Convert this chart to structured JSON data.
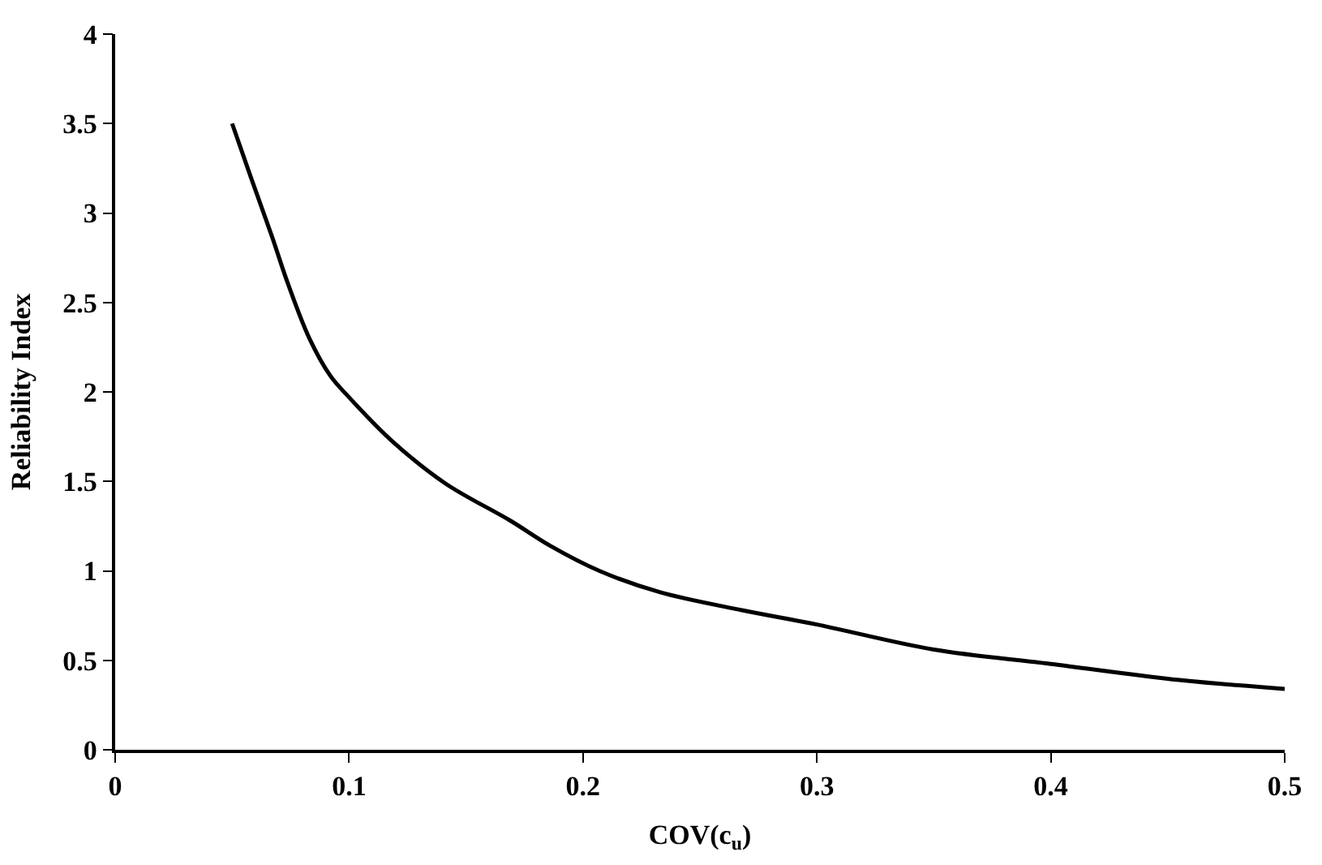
{
  "chart_data": {
    "type": "line",
    "xlabel": "COV(c$_{u}$)",
    "ylabel": "Reliability Index",
    "x": [
      0.05,
      0.058,
      0.067,
      0.074,
      0.083,
      0.092,
      0.1,
      0.118,
      0.141,
      0.169,
      0.186,
      0.207,
      0.233,
      0.268,
      0.3,
      0.35,
      0.4,
      0.455,
      0.5
    ],
    "series": [
      {
        "color": "#000000",
        "values": [
          3.5,
          3.2,
          2.87,
          2.6,
          2.3,
          2.09,
          1.97,
          1.73,
          1.49,
          1.28,
          1.14,
          1.0,
          0.88,
          0.78,
          0.7,
          0.56,
          0.48,
          0.39,
          0.34
        ]
      }
    ],
    "xlim": [
      0,
      0.5
    ],
    "xticks": [
      0,
      0.1,
      0.2,
      0.3,
      0.4,
      0.5
    ],
    "ylim": [
      0,
      4
    ],
    "yticks": [
      0,
      0.5,
      1,
      1.5,
      2,
      2.5,
      3,
      3.5,
      4
    ],
    "marker": "none",
    "line_style": "solid"
  }
}
